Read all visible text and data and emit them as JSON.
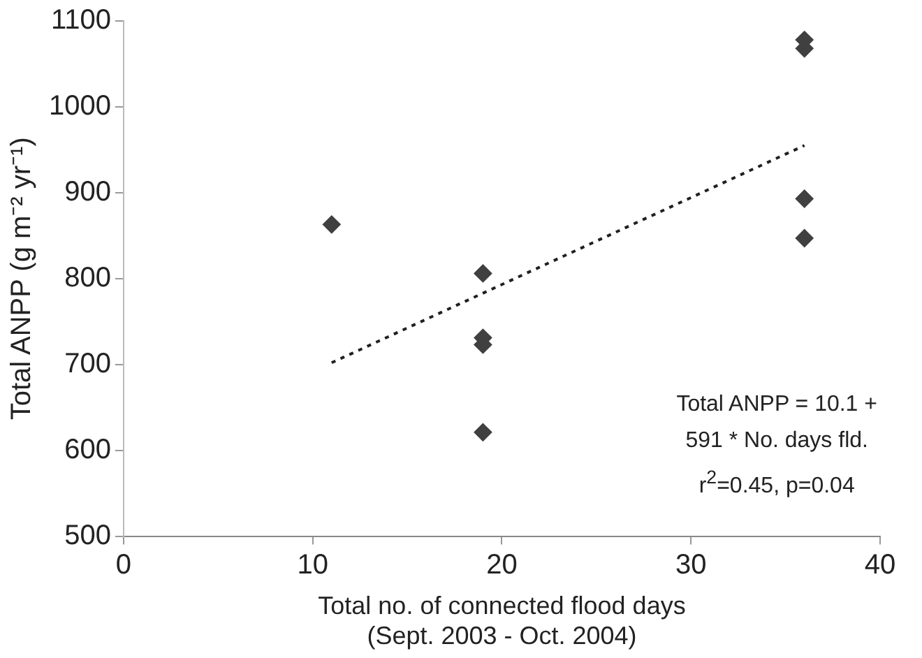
{
  "chart_data": {
    "type": "scatter",
    "xlabel": "Total no. of connected flood days\n(Sept. 2003 - Oct. 2004)",
    "ylabel": "Total ANPP (g m⁻² yr⁻¹)",
    "series": [
      {
        "color": "#404040",
        "marker": "diamond",
        "x": [
          11,
          19,
          19,
          19,
          19,
          36,
          36,
          36,
          36
        ],
        "values": [
          863,
          806,
          731,
          723,
          621,
          1078,
          1068,
          893,
          847
        ]
      },
      {
        "type": "line",
        "color": "#202020",
        "line_style": "dotted",
        "marker": "none",
        "x": [
          11,
          36
        ],
        "values": [
          702,
          955
        ]
      }
    ],
    "xlim": [
      0,
      40
    ],
    "xticks": [
      0,
      10,
      20,
      30,
      40
    ],
    "ylim": [
      500,
      1100
    ],
    "yticks": [
      500,
      600,
      700,
      800,
      900,
      1000,
      1100
    ],
    "grid": false,
    "legend": false,
    "annotations": [
      "Total ANPP = 10.1 +",
      "591 * No. days fld.",
      "r$^{2}$=0.45, p=0.04"
    ]
  }
}
